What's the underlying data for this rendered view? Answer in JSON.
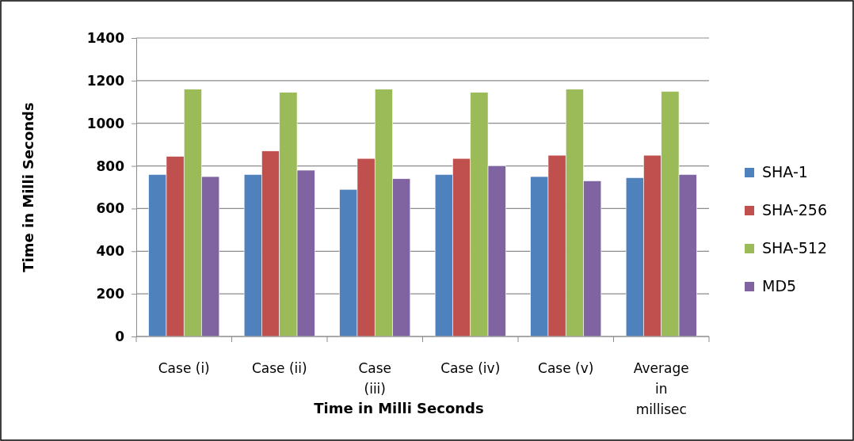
{
  "chart_data": {
    "type": "bar",
    "xlabel": "Time in Milli Seconds",
    "ylabel": "Time in Milli Seconds",
    "categories": [
      "Case (i)",
      "Case (ii)",
      "Case (iii)",
      "Case (iv)",
      "Case (v)",
      "Average in millisec"
    ],
    "series": [
      {
        "name": "SHA-1",
        "color": "#4f81bd",
        "values": [
          760,
          760,
          690,
          760,
          750,
          745
        ]
      },
      {
        "name": "SHA-256",
        "color": "#c0504d",
        "values": [
          845,
          870,
          835,
          835,
          850,
          850
        ]
      },
      {
        "name": "SHA-512",
        "color": "#9bbb59",
        "values": [
          1160,
          1145,
          1160,
          1145,
          1160,
          1150
        ]
      },
      {
        "name": "MD5",
        "color": "#8064a2",
        "values": [
          750,
          780,
          740,
          800,
          730,
          760
        ]
      }
    ],
    "ylim": [
      0,
      1400
    ],
    "yticks": [
      0,
      200,
      400,
      600,
      800,
      1000,
      1200,
      1400
    ],
    "grid": "y",
    "legend": "right"
  }
}
